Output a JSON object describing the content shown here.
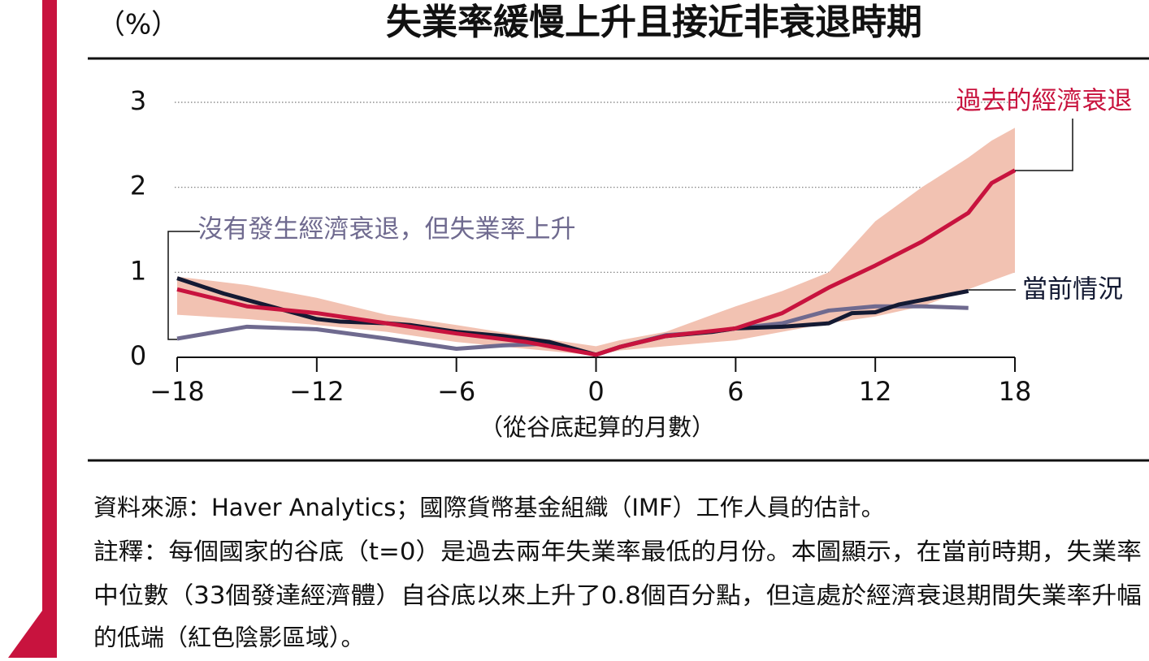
{
  "chart_data": {
    "type": "line",
    "title": "失業率緩慢上升且接近非衰退時期",
    "y_unit": "（%）",
    "x_label": "（從谷底起算的月數）",
    "xlim": [
      -18,
      18
    ],
    "ylim": [
      0,
      3
    ],
    "xticks": [
      {
        "value": -18,
        "label": "−18"
      },
      {
        "value": -12,
        "label": "−12"
      },
      {
        "value": -6,
        "label": "−6"
      },
      0,
      6,
      12,
      18
    ],
    "yticks": [
      0,
      1,
      2,
      3
    ],
    "grid": true,
    "series": [
      {
        "name": "過去的經濟衰退",
        "color": "#c8133e",
        "band_color": "#f2c2b2",
        "x": [
          -18,
          -15,
          -12,
          -9,
          -6,
          -3,
          0,
          1,
          3,
          6,
          8,
          10,
          12,
          14,
          16,
          17,
          18
        ],
        "values": [
          0.8,
          0.6,
          0.52,
          0.4,
          0.28,
          0.18,
          0.03,
          0.12,
          0.25,
          0.34,
          0.52,
          0.82,
          1.08,
          1.36,
          1.7,
          2.05,
          2.2
        ],
        "upper": [
          0.95,
          0.85,
          0.7,
          0.5,
          0.38,
          0.25,
          0.13,
          0.2,
          0.3,
          0.6,
          0.78,
          1.0,
          1.6,
          2.0,
          2.35,
          2.55,
          2.7
        ],
        "lower": [
          0.5,
          0.45,
          0.38,
          0.3,
          0.18,
          0.1,
          0.02,
          0.08,
          0.13,
          0.2,
          0.3,
          0.4,
          0.48,
          0.6,
          0.8,
          0.9,
          1.0
        ]
      },
      {
        "name": "當前情況",
        "color": "#141a33",
        "x": [
          -18,
          -16,
          -14,
          -12,
          -11,
          -9,
          -8,
          -6,
          -4,
          -2,
          0,
          1,
          3,
          5,
          6,
          8,
          10,
          11,
          12,
          13,
          16
        ],
        "values": [
          0.93,
          0.75,
          0.6,
          0.45,
          0.42,
          0.4,
          0.38,
          0.3,
          0.25,
          0.18,
          0.03,
          0.12,
          0.25,
          0.3,
          0.34,
          0.36,
          0.4,
          0.52,
          0.53,
          0.62,
          0.78
        ]
      },
      {
        "name": "沒有發生經濟衰退，但失業率上升",
        "color": "#6f6a8f",
        "x": [
          -18,
          -15,
          -12,
          -9,
          -6,
          -4,
          -2,
          0,
          1,
          3,
          5,
          6,
          8,
          10,
          12,
          14,
          16
        ],
        "values": [
          0.22,
          0.36,
          0.33,
          0.22,
          0.1,
          0.14,
          0.16,
          0.03,
          0.12,
          0.26,
          0.3,
          0.34,
          0.4,
          0.55,
          0.6,
          0.6,
          0.58
        ]
      }
    ]
  },
  "notes": [
    "資料來源：Haver Analytics；國際貨幣基金組織（IMF）工作人員的估計。",
    "註釋：每個國家的谷底（t=0）是過去兩年失業率最低的月份。本圖顯示，在當前時期，失業率",
    "中位數（33個發達經濟體）自谷底以來上升了0.8個百分點，但這處於經濟衰退期間失業率升幅",
    "的低端（紅色陰影區域）。"
  ]
}
